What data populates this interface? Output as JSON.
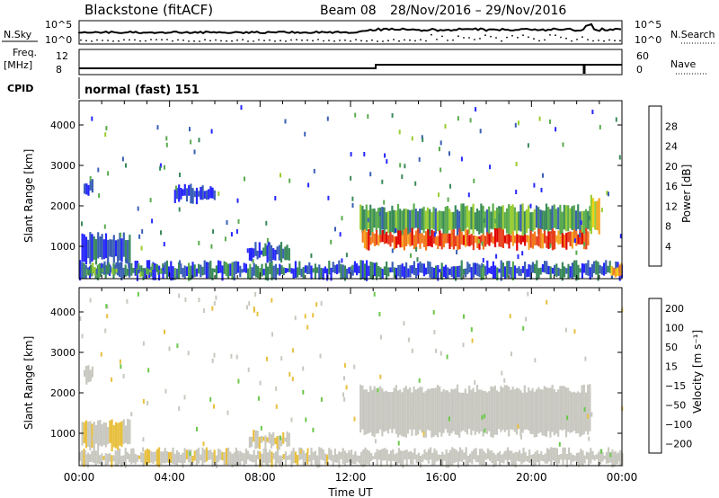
{
  "header": {
    "station": "Blackstone (fitACF)",
    "beam_text": "Beam 08",
    "date_range": "28/Nov/2016 – 29/Nov/2016"
  },
  "noise_panel": {
    "left_label": "N.Sky",
    "right_label": "N.Search",
    "left_ticks": [
      "10^5",
      "10^0"
    ],
    "right_ticks": [
      "10^5",
      "10^0"
    ]
  },
  "freq_panel": {
    "left_label_top": "Freq.",
    "left_label_unit": "[MHz]",
    "left_ticks": [
      "12",
      "8"
    ],
    "right_label": "Nave",
    "right_ticks": [
      "60",
      "0"
    ]
  },
  "cpid_panel": {
    "label": "CPID",
    "mode_text": "normal (fast) 151"
  },
  "x_axis": {
    "label": "Time UT",
    "ticks": [
      "00:00",
      "04:00",
      "08:00",
      "12:00",
      "16:00",
      "20:00",
      "00:00"
    ]
  },
  "colors": {
    "power": [
      "#2626ff",
      "#3a5fb5",
      "#3a8a5a",
      "#5aab4e",
      "#9acd32",
      "#f2d21c",
      "#f5a623",
      "#f27a1e",
      "#e8401c",
      "#e00000"
    ],
    "velocity": [
      "#e00000",
      "#f24c1a",
      "#f5a623",
      "#e8c040",
      "#c8c8c0",
      "#c8c8c0",
      "#6cc84a",
      "#3a8a5a",
      "#3a5fb5",
      "#2626ff"
    ]
  },
  "chart_data": [
    {
      "type": "heatmap",
      "name": "power",
      "ylabel": "Slant Range [km]",
      "ylim": [
        200,
        4600
      ],
      "y_ticks": [
        "1000",
        "2000",
        "3000",
        "4000"
      ],
      "colorbar": {
        "label": "Power [dB]",
        "range": [
          0,
          32
        ],
        "ticks": [
          "4",
          "8",
          "12",
          "16",
          "20",
          "24",
          "28"
        ]
      },
      "xlim_hours": [
        0,
        24
      ],
      "regions": [
        {
          "t": [
            0.0,
            24.0
          ],
          "r": [
            250,
            550
          ],
          "level": 5
        },
        {
          "t": [
            0.3,
            1.8
          ],
          "r": [
            320,
            520
          ],
          "level": 10
        },
        {
          "t": [
            2.5,
            3.7
          ],
          "r": [
            320,
            470
          ],
          "level": 10
        },
        {
          "t": [
            0.1,
            2.2
          ],
          "r": [
            650,
            1250
          ],
          "level": 4
        },
        {
          "t": [
            0.2,
            0.6
          ],
          "r": [
            2300,
            2600
          ],
          "level": 2
        },
        {
          "t": [
            7.5,
            9.3
          ],
          "r": [
            700,
            1000
          ],
          "level": 4
        },
        {
          "t": [
            4.2,
            6.0
          ],
          "r": [
            2150,
            2450
          ],
          "level": 1
        },
        {
          "t": [
            12.4,
            22.6
          ],
          "r": [
            1350,
            1950
          ],
          "level": 10
        },
        {
          "t": [
            12.5,
            22.5
          ],
          "r": [
            1000,
            1350
          ],
          "level": 26
        },
        {
          "t": [
            22.6,
            23.0
          ],
          "r": [
            1400,
            2200
          ],
          "level": 16
        },
        {
          "t": [
            23.5,
            24.0
          ],
          "r": [
            300,
            500
          ],
          "level": 22
        }
      ]
    },
    {
      "type": "heatmap",
      "name": "velocity",
      "ylabel": "Slant Range [km]",
      "ylim": [
        200,
        4600
      ],
      "y_ticks": [
        "1000",
        "2000",
        "3000",
        "4000"
      ],
      "colorbar": {
        "label": "Velocity [m s⁻¹]",
        "range": [
          -250,
          250
        ],
        "ticks": [
          "200",
          "100",
          "50",
          "15",
          "−15",
          "−50",
          "−100",
          "−200"
        ]
      },
      "xlim_hours": [
        0,
        24
      ],
      "regions": [
        {
          "t": [
            0.0,
            12.0
          ],
          "r": [
            250,
            550
          ],
          "level": -30
        },
        {
          "t": [
            12.0,
            24.0
          ],
          "r": [
            250,
            550
          ],
          "level": 20
        },
        {
          "t": [
            0.1,
            2.2
          ],
          "r": [
            650,
            1250
          ],
          "level": -40
        },
        {
          "t": [
            7.5,
            9.3
          ],
          "r": [
            700,
            1000
          ],
          "level": -40
        },
        {
          "t": [
            12.4,
            22.6
          ],
          "r": [
            1000,
            2100
          ],
          "level": 0
        },
        {
          "t": [
            0.2,
            0.6
          ],
          "r": [
            2300,
            2600
          ],
          "level": 0
        },
        {
          "t": [
            23.5,
            24.0
          ],
          "r": [
            300,
            500
          ],
          "level": 0
        }
      ]
    }
  ]
}
